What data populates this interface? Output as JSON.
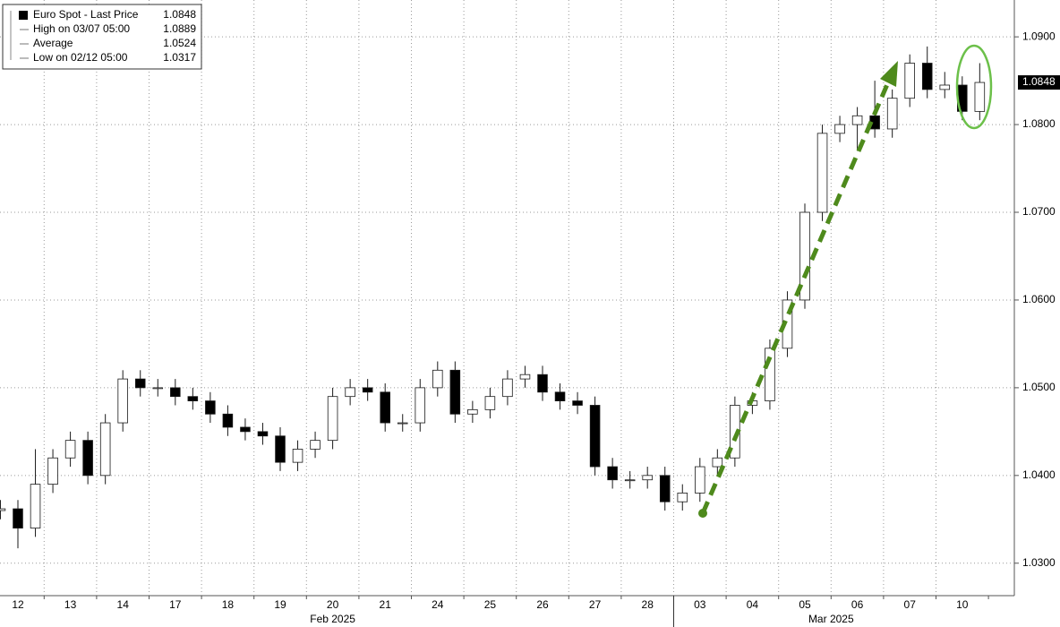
{
  "chart_data": {
    "type": "candlestick",
    "legend": [
      {
        "label": "Euro Spot - Last Price",
        "value": 1.0848
      },
      {
        "label": "High on 03/07 05:00",
        "value": 1.0889
      },
      {
        "label": "Average",
        "value": 1.0524
      },
      {
        "label": "Low on 02/12 05:00",
        "value": 1.0317
      }
    ],
    "categories": [
      "12",
      "13",
      "14",
      "17",
      "18",
      "19",
      "20",
      "21",
      "24",
      "25",
      "26",
      "27",
      "28",
      "03",
      "04",
      "05",
      "06",
      "07",
      "10"
    ],
    "month_labels": [
      "Feb 2025",
      "Mar 2025"
    ],
    "series": [
      {
        "name": "Euro Spot - Last Price",
        "open": [
          1.036,
          1.0362,
          1.034,
          1.039,
          1.042,
          1.044,
          1.04,
          1.046,
          1.051,
          1.05,
          1.05,
          1.049,
          1.0485,
          1.047,
          1.0455,
          1.045,
          1.0445,
          1.0415,
          1.043,
          1.044,
          1.049,
          1.05,
          1.0495,
          1.046,
          1.046,
          1.05,
          1.052,
          1.047,
          1.0475,
          1.049,
          1.051,
          1.0515,
          1.0495,
          1.0485,
          1.048,
          1.041,
          1.0395,
          1.0395,
          1.04,
          1.037,
          1.038,
          1.041,
          1.042,
          1.048,
          1.0485,
          1.0545,
          1.06,
          1.07,
          1.079,
          1.08,
          1.081,
          1.0795,
          1.083,
          1.087,
          1.084,
          1.0845,
          1.0815
        ],
        "high": [
          1.0372,
          1.0372,
          1.043,
          1.043,
          1.045,
          1.045,
          1.047,
          1.052,
          1.052,
          1.051,
          1.051,
          1.05,
          1.0495,
          1.048,
          1.0465,
          1.046,
          1.0455,
          1.044,
          1.045,
          1.05,
          1.051,
          1.051,
          1.0505,
          1.047,
          1.051,
          1.053,
          1.053,
          1.0485,
          1.05,
          1.052,
          1.0525,
          1.0525,
          1.0505,
          1.0495,
          1.049,
          1.042,
          1.0405,
          1.041,
          1.041,
          1.039,
          1.042,
          1.043,
          1.049,
          1.0495,
          1.0555,
          1.061,
          1.071,
          1.08,
          1.081,
          1.082,
          1.085,
          1.084,
          1.088,
          1.0889,
          1.086,
          1.0855,
          1.087
        ],
        "low": [
          1.035,
          1.0317,
          1.033,
          1.038,
          1.041,
          1.039,
          1.039,
          1.045,
          1.049,
          1.049,
          1.048,
          1.0475,
          1.046,
          1.0445,
          1.044,
          1.0435,
          1.0405,
          1.0405,
          1.042,
          1.043,
          1.048,
          1.0485,
          1.045,
          1.045,
          1.045,
          1.049,
          1.046,
          1.046,
          1.0465,
          1.048,
          1.05,
          1.0485,
          1.0475,
          1.047,
          1.04,
          1.0385,
          1.0385,
          1.0385,
          1.036,
          1.036,
          1.037,
          1.04,
          1.041,
          1.047,
          1.0475,
          1.0535,
          1.059,
          1.069,
          1.078,
          1.077,
          1.0785,
          1.0785,
          1.082,
          1.083,
          1.083,
          1.0805,
          1.0805
        ],
        "close": [
          1.0362,
          1.034,
          1.039,
          1.042,
          1.044,
          1.04,
          1.046,
          1.051,
          1.05,
          1.05,
          1.049,
          1.0485,
          1.047,
          1.0455,
          1.045,
          1.0445,
          1.0415,
          1.043,
          1.044,
          1.049,
          1.05,
          1.0495,
          1.046,
          1.046,
          1.05,
          1.052,
          1.047,
          1.0475,
          1.049,
          1.051,
          1.0515,
          1.0495,
          1.0485,
          1.048,
          1.041,
          1.0395,
          1.0395,
          1.04,
          1.037,
          1.038,
          1.041,
          1.042,
          1.048,
          1.0485,
          1.0545,
          1.06,
          1.07,
          1.079,
          1.08,
          1.081,
          1.0795,
          1.083,
          1.087,
          1.084,
          1.0845,
          1.0815,
          1.0848
        ]
      }
    ],
    "up_color": "#ffffff",
    "down_color": "#000000",
    "wick_color": "#1a1a1a",
    "ylim": [
      1.0263,
      1.0942
    ],
    "yticks": [
      {
        "value": 1.03,
        "label": "1.0300"
      },
      {
        "value": 1.04,
        "label": "1.0400"
      },
      {
        "value": 1.05,
        "label": "1.0500"
      },
      {
        "value": 1.06,
        "label": "1.0600"
      },
      {
        "value": 1.07,
        "label": "1.0700"
      },
      {
        "value": 1.08,
        "label": "1.0800"
      },
      {
        "value": 1.09,
        "label": "1.0900"
      }
    ],
    "grid": true
  }
}
